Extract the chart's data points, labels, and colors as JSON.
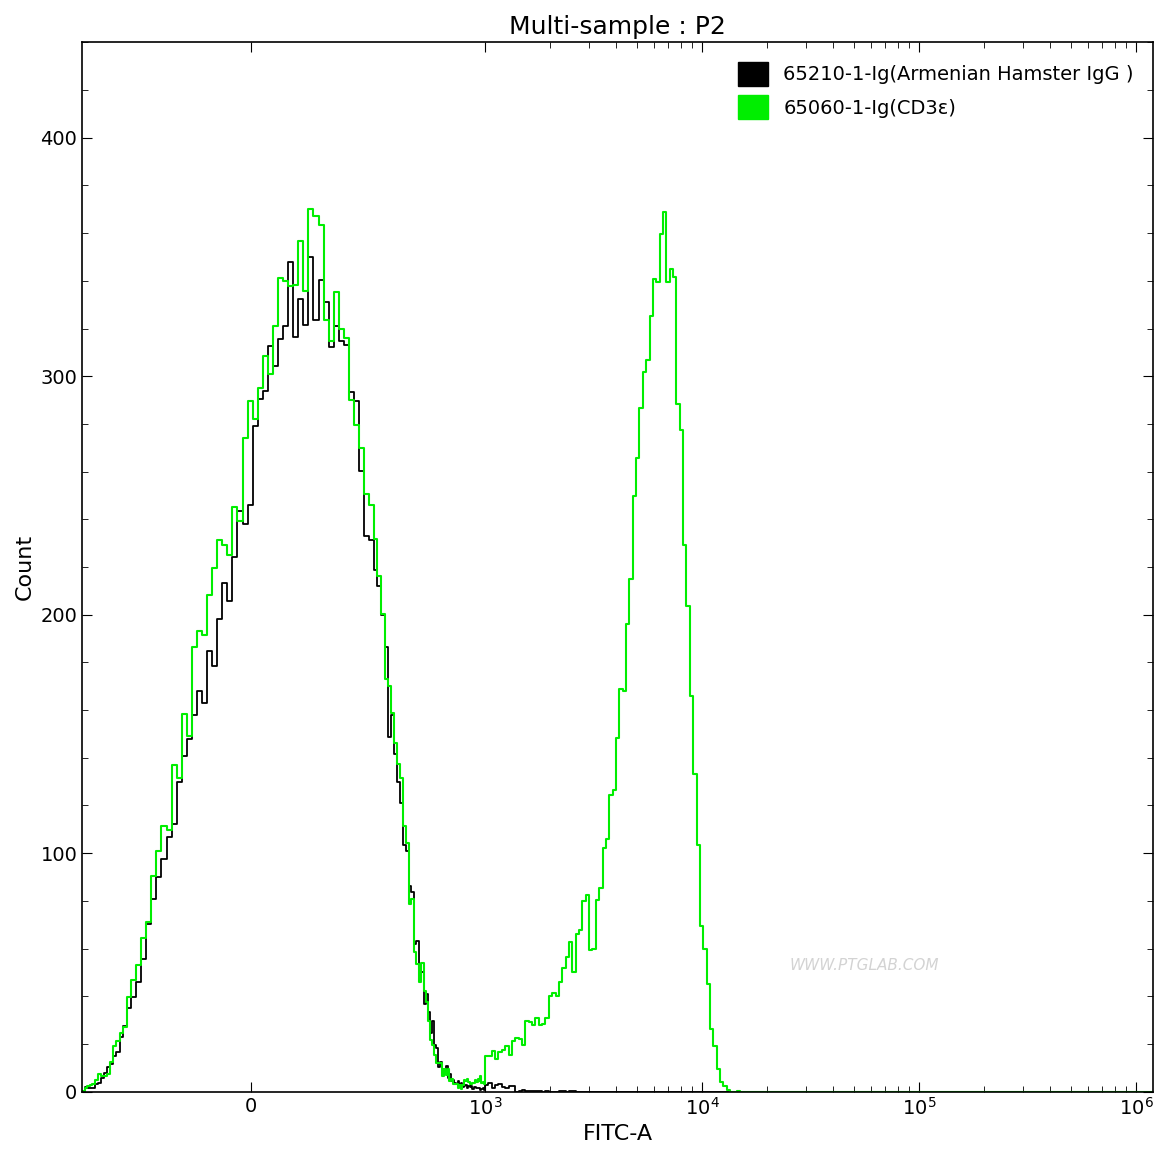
{
  "title": "Multi-sample : P2",
  "xlabel": "FITC-A",
  "ylabel": "Count",
  "legend_entries": [
    {
      "label": "65210-1-Ig(Armenian Hamster IgG )",
      "color": "#000000"
    },
    {
      "label": "65060-1-Ig(CD3ε)",
      "color": "#00ee00"
    }
  ],
  "ylim_min": 0,
  "ylim_max": 440,
  "background_color": "#ffffff",
  "watermark": "WWW.PTGLAB.COM",
  "title_fontsize": 18,
  "axis_fontsize": 16,
  "tick_fontsize": 14,
  "legend_fontsize": 14
}
